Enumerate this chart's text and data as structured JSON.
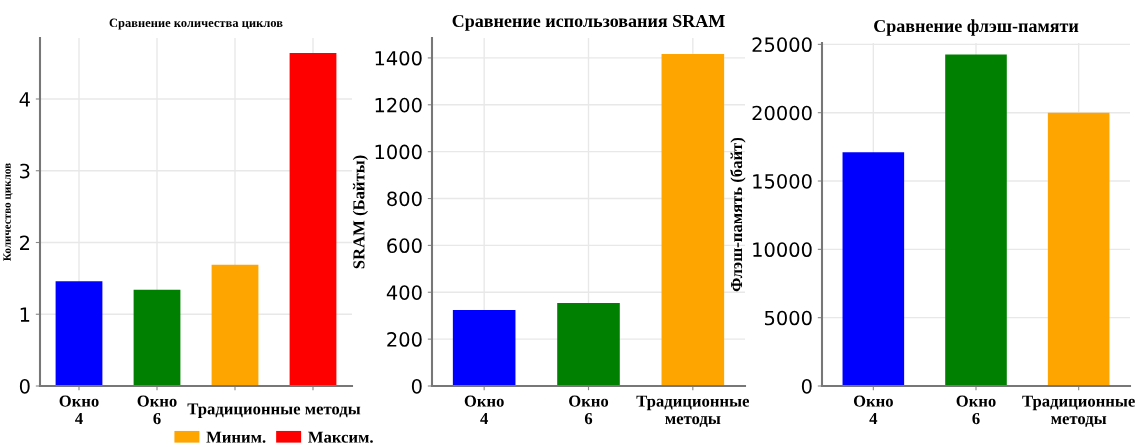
{
  "chart_data": [
    {
      "type": "bar",
      "title": "Сравнение количества циклов",
      "ylabel": "Количество циклов",
      "categories": [
        "Окно\n4",
        "Окно\n6",
        null,
        null
      ],
      "series": [
        {
          "colors": [
            "#0000ff",
            "#008000",
            null,
            null
          ],
          "values": [
            1.46,
            1.34,
            null,
            null
          ]
        },
        {
          "name": "Миним.",
          "color": "#ffa500",
          "values": [
            null,
            null,
            1.69,
            null
          ]
        },
        {
          "name": "Максим.",
          "color": "#ff0000",
          "values": [
            null,
            null,
            null,
            4.64
          ]
        }
      ],
      "annotations": [
        "Традиционные методы"
      ],
      "ylim": [
        0,
        4.85
      ],
      "yticks": [
        0,
        1,
        2,
        3,
        4
      ],
      "grid": true,
      "legend": "bottom"
    },
    {
      "type": "bar",
      "title": "Сравнение использования SRAM",
      "ylabel": "SRAM (Байты)",
      "categories": [
        "Окно\n4",
        "Окно\n6",
        "Традиционные\nметоды"
      ],
      "values": [
        324,
        354,
        1417
      ],
      "colors": [
        "#0000ff",
        "#008000",
        "#ffa500"
      ],
      "ylim": [
        0,
        1485
      ],
      "yticks": [
        0,
        200,
        400,
        600,
        800,
        1000,
        1200,
        1400
      ],
      "grid": true
    },
    {
      "type": "bar",
      "title": "Сравнение флэш-памяти",
      "ylabel": "Флэш-память (байт)",
      "categories": [
        "Окно\n4",
        "Окно\n6",
        "Традиционные\nметоды"
      ],
      "values": [
        17100,
        24250,
        20000
      ],
      "colors": [
        "#0000ff",
        "#008000",
        "#ffa500"
      ],
      "ylim": [
        0,
        25100
      ],
      "yticks": [
        0,
        5000,
        10000,
        15000,
        20000,
        25000
      ],
      "grid": true
    }
  ]
}
